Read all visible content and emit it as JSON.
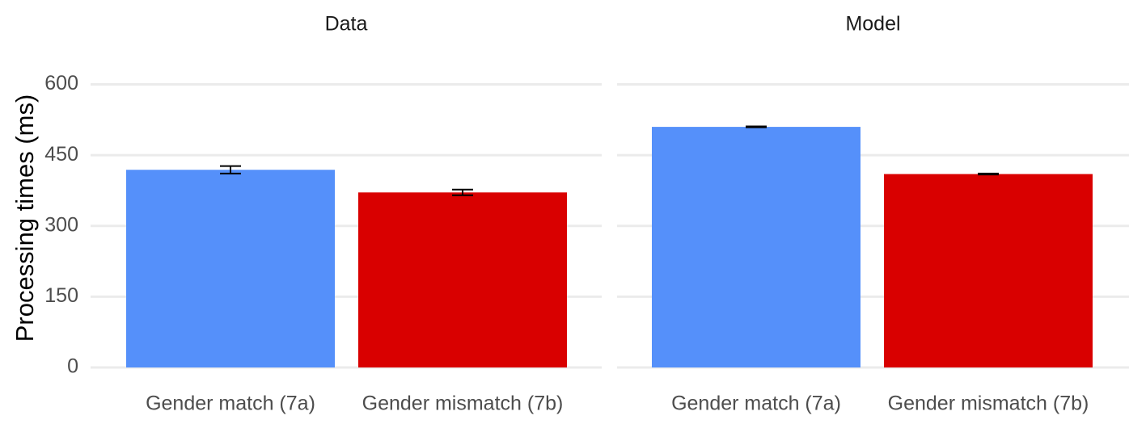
{
  "chart_data": {
    "type": "bar",
    "ylabel": "Processing times (ms)",
    "ylim": [
      0,
      630
    ],
    "yticks": [
      0,
      150,
      300,
      450,
      600
    ],
    "grid": true,
    "legend": "none",
    "categories": [
      "Gender match (7a)",
      "Gender mismatch (7b)"
    ],
    "colors": [
      "#5590fa",
      "#d90000"
    ],
    "panels": [
      {
        "title": "Data",
        "values": [
          419,
          371
        ],
        "errors": [
          8,
          6
        ]
      },
      {
        "title": "Model",
        "values": [
          510,
          410
        ],
        "errors": [
          1,
          1
        ]
      }
    ]
  }
}
